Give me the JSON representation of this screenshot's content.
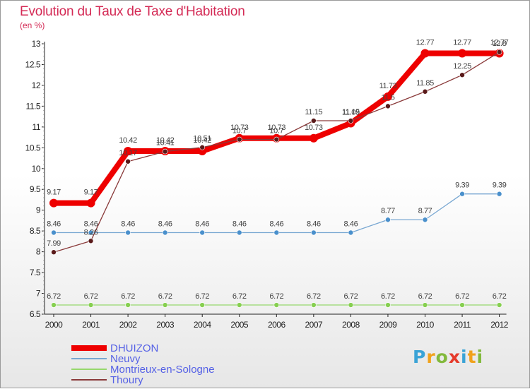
{
  "header": {
    "title": "Evolution du Taux de Taxe d'Habitation",
    "unit": "(en %)"
  },
  "logo": {
    "text": "Proxiti",
    "letter_colors": [
      "#3aa3d6",
      "#f0a21c",
      "#82b93c",
      "#e53b2c",
      "#3aa3d6",
      "#f0a21c",
      "#82b93c"
    ]
  },
  "chart_data": {
    "type": "line",
    "x": [
      "2000",
      "2001",
      "2002",
      "2003",
      "2004",
      "2005",
      "2006",
      "2007",
      "2008",
      "2009",
      "2010",
      "2011",
      "2012"
    ],
    "ylim": [
      6.5,
      13
    ],
    "yticks": [
      "6.5",
      "7",
      "7.5",
      "8",
      "8.5",
      "9",
      "9.5",
      "10",
      "10.5",
      "11",
      "11.5",
      "12",
      "12.5",
      "13"
    ],
    "grid": false,
    "legend_position": "bottom-left",
    "series": [
      {
        "name": "DHUIZON",
        "color": "#ee0000",
        "stroke_width": 8,
        "marker_r": 6,
        "marker_fill": "#ee0000",
        "values": [
          9.17,
          9.17,
          10.42,
          10.42,
          10.42,
          10.73,
          10.73,
          10.73,
          11.09,
          11.73,
          12.77,
          12.77,
          12.77
        ],
        "labels": [
          "9.17",
          "9.17",
          "10.42",
          "10.42",
          "10.42",
          "10.73",
          "10.73",
          "10.73",
          "11.09",
          "11.73",
          "12.77",
          "12.77",
          "12.77"
        ]
      },
      {
        "name": "Neuvy",
        "color": "#78a7d2",
        "stroke_width": 1.3,
        "marker_r": 3.5,
        "marker_fill": "#4a90cc",
        "values": [
          8.46,
          8.46,
          8.46,
          8.46,
          8.46,
          8.46,
          8.46,
          8.46,
          8.46,
          8.77,
          8.77,
          9.39,
          9.39
        ],
        "labels": [
          "8.46",
          "8.46",
          "8.46",
          "8.46",
          "8.46",
          "8.46",
          "8.46",
          "8.46",
          "8.46",
          "8.77",
          "8.77",
          "9.39",
          "9.39"
        ]
      },
      {
        "name": "Montrieux-en-Sologne",
        "color": "#96d86c",
        "stroke_width": 1.3,
        "marker_r": 3.5,
        "marker_fill": "#86cf50",
        "values": [
          6.72,
          6.72,
          6.72,
          6.72,
          6.72,
          6.72,
          6.72,
          6.72,
          6.72,
          6.72,
          6.72,
          6.72,
          6.72
        ],
        "labels": [
          "6.72",
          "6.72",
          "6.72",
          "6.72",
          "6.72",
          "6.72",
          "6.72",
          "6.72",
          "6.72",
          "6.72",
          "6.72",
          "6.72",
          "6.72"
        ]
      },
      {
        "name": "Thoury",
        "color": "#8a3a3a",
        "stroke_width": 1.3,
        "marker_r": 3.5,
        "marker_fill": "#5a1a1a",
        "values": [
          7.99,
          8.26,
          10.17,
          10.41,
          10.51,
          10.7,
          10.7,
          11.15,
          11.15,
          11.5,
          11.85,
          12.25,
          12.8
        ],
        "labels": [
          "7.99",
          "8.26",
          "10.17",
          "10.41",
          "10.51",
          "10.7",
          "10.7",
          "11.15",
          "11.15",
          "11.5",
          "11.85",
          "12.25",
          "12.8"
        ]
      }
    ]
  }
}
